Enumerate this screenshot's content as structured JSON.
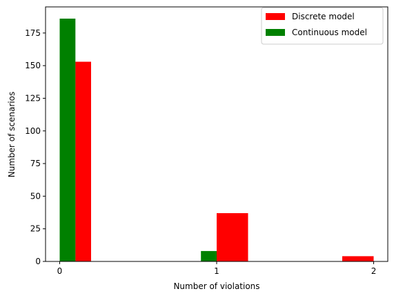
{
  "chart_data": {
    "type": "bar",
    "xlabel": "Number of violations",
    "ylabel": "Number of scenarios",
    "xlim": [
      -0.09,
      2.09
    ],
    "ylim": [
      0,
      195
    ],
    "x_ticks": [
      "0",
      "1",
      "2"
    ],
    "y_ticks": [
      "0",
      "25",
      "50",
      "75",
      "100",
      "125",
      "150",
      "175"
    ],
    "grid": false,
    "legend_position": "top-right",
    "series": [
      {
        "name": "Discrete model",
        "color": "#ff0000",
        "bars": [
          {
            "x0": 0.1,
            "x1": 0.2,
            "value": 153
          },
          {
            "x0": 1.0,
            "x1": 1.2,
            "value": 37
          },
          {
            "x0": 1.8,
            "x1": 2.0,
            "value": 4
          }
        ]
      },
      {
        "name": "Continuous model",
        "color": "#008000",
        "bars": [
          {
            "x0": 0.0,
            "x1": 0.1,
            "value": 186
          },
          {
            "x0": 0.9,
            "x1": 1.0,
            "value": 8
          }
        ]
      }
    ]
  }
}
